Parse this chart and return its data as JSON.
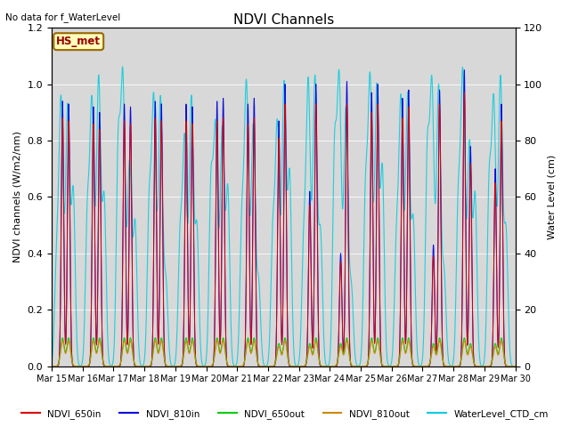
{
  "title": "NDVI Channels",
  "no_data_text": "No data for f_WaterLevel",
  "annotation_text": "HS_met",
  "ylabel_left": "NDVI channels (W/m2/nm)",
  "ylabel_right": "Water Level (cm)",
  "xlim_days": [
    0,
    15
  ],
  "ylim_left": [
    0,
    1.2
  ],
  "ylim_right": [
    0,
    120
  ],
  "xtick_labels": [
    "Mar 15",
    "Mar 16",
    "Mar 17",
    "Mar 18",
    "Mar 19",
    "Mar 20",
    "Mar 21",
    "Mar 22",
    "Mar 23",
    "Mar 24",
    "Mar 25",
    "Mar 26",
    "Mar 27",
    "Mar 28",
    "Mar 29",
    "Mar 30"
  ],
  "colors": {
    "NDVI_650in": "#dd0000",
    "NDVI_810in": "#0000dd",
    "NDVI_650out": "#00cc00",
    "NDVI_810out": "#cc8800",
    "WaterLevel_CTD_cm": "#00ccdd"
  },
  "legend_labels": [
    "NDVI_650in",
    "NDVI_810in",
    "NDVI_650out",
    "NDVI_810out",
    "WaterLevel_CTD_cm"
  ],
  "background_color": "#d8d8d8",
  "figsize": [
    6.4,
    4.8
  ],
  "dpi": 100
}
